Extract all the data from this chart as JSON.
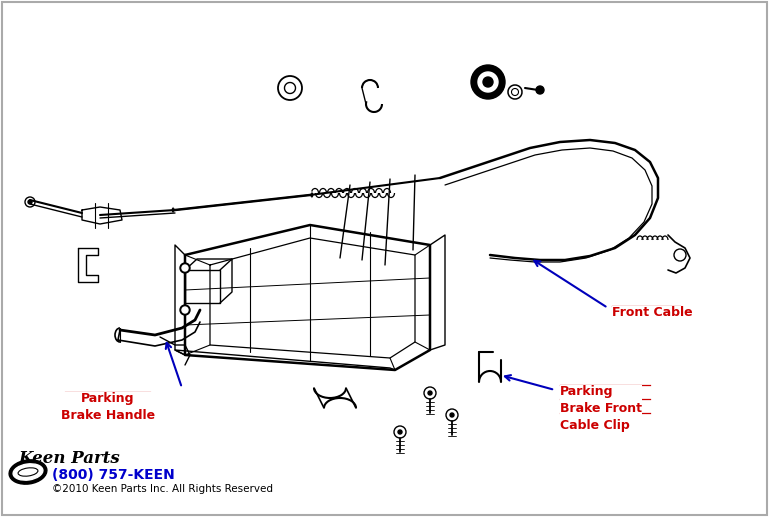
{
  "bg_color": "#ffffff",
  "line_color": "#000000",
  "label_color_red": "#cc0000",
  "label_color_blue": "#0000cc",
  "arrow_color_blue": "#0000bb",
  "fig_width": 7.7,
  "fig_height": 5.18,
  "labels": {
    "front_cable": "Front Cable",
    "parking_brake_handle": "Parking\nBrake Handle",
    "parking_brake_front_cable_clip": "Parking\nBrake Front\nCable Clip"
  },
  "footer_phone": "(800) 757-KEEN",
  "footer_copy": "©2010 Keen Parts Inc. All Rights Reserved"
}
